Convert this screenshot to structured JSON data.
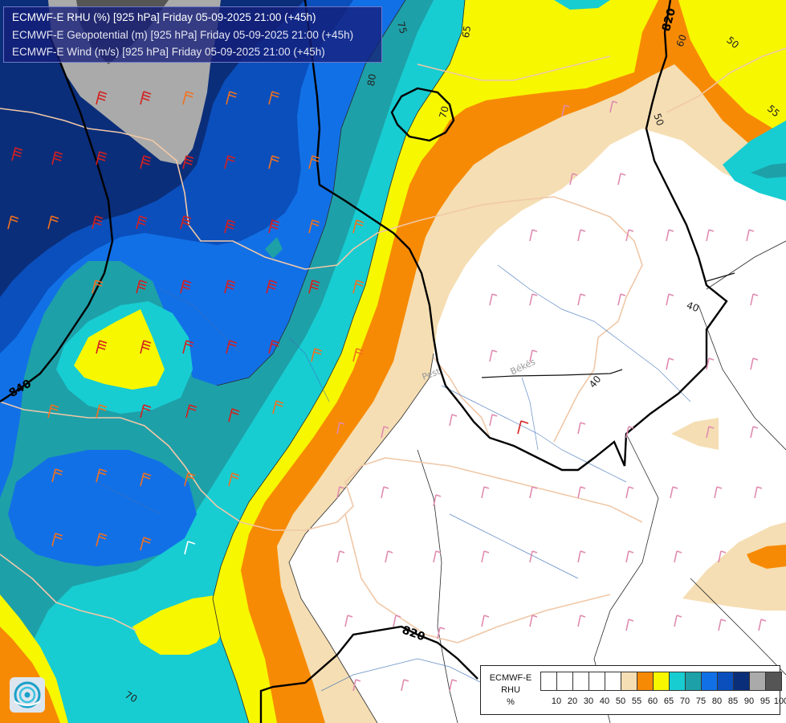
{
  "titles": {
    "line1": "ECMWF-E RHU (%) [925 hPa] Friday 05-09-2025 21:00 (+45h)",
    "line2": "ECMWF-E Geopotential (m) [925 hPa] Friday 05-09-2025 21:00 (+45h)",
    "line3": "ECMWF-E Wind (m/s) [925 hPa] Friday 05-09-2025 21:00 (+45h)"
  },
  "legend": {
    "title1": "ECMWF-E",
    "title2": "RHU",
    "unit": "%",
    "bins": [
      {
        "color": "#ffffff"
      },
      {
        "color": "#ffffff"
      },
      {
        "color": "#ffffff"
      },
      {
        "color": "#ffffff"
      },
      {
        "color": "#ffffff"
      },
      {
        "color": "#f5deb3"
      },
      {
        "color": "#f78a04"
      },
      {
        "color": "#f7f700"
      },
      {
        "color": "#17cdd2"
      },
      {
        "color": "#1ea0a8"
      },
      {
        "color": "#1270e6"
      },
      {
        "color": "#0a4fbc"
      },
      {
        "color": "#0b2e7a"
      },
      {
        "color": "#aaaaaa"
      },
      {
        "color": "#555555"
      }
    ],
    "ticks": [
      "10",
      "20",
      "30",
      "40",
      "50",
      "55",
      "60",
      "65",
      "70",
      "75",
      "80",
      "85",
      "90",
      "95",
      "100"
    ]
  },
  "geopotential_labels": [
    "820",
    "840",
    "840",
    "820"
  ],
  "rhu_labels": [
    "75",
    "65",
    "80",
    "70",
    "60",
    "50",
    "55",
    "50",
    "40",
    "40",
    "70"
  ],
  "place_labels": [
    "Pest",
    "Békés"
  ]
}
